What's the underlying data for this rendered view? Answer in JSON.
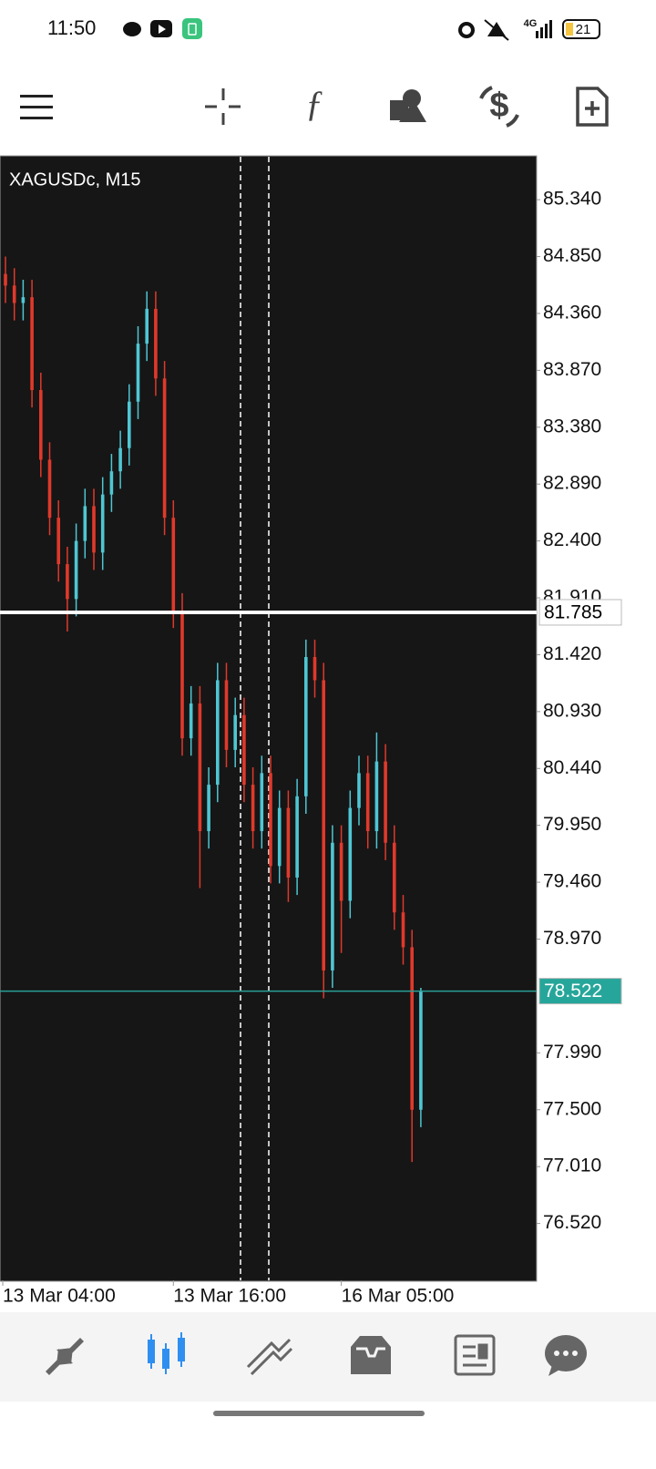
{
  "status_bar": {
    "time": "11:50",
    "network": "4G",
    "battery": "21"
  },
  "chart_data": {
    "type": "candlestick",
    "title": "XAGUSDc, M15",
    "categories": [
      "13 Mar 04:00",
      null,
      null,
      null,
      null,
      null,
      null,
      null,
      null,
      null,
      null,
      null,
      null,
      null,
      null,
      null,
      null,
      null,
      null,
      "13 Mar 16:00",
      null,
      null,
      null,
      null,
      null,
      null,
      null,
      null,
      null,
      null,
      null,
      null,
      null,
      null,
      null,
      null,
      null,
      null,
      "16 Mar 05:00",
      null,
      null,
      null,
      null,
      null,
      null,
      null,
      null,
      null
    ],
    "open": [
      84.7,
      84.6,
      84.45,
      84.5,
      83.7,
      83.1,
      82.6,
      82.2,
      81.9,
      82.4,
      82.7,
      82.3,
      82.8,
      83.0,
      83.2,
      83.6,
      84.1,
      84.4,
      83.8,
      82.6,
      81.8,
      80.7,
      81.0,
      79.9,
      80.3,
      81.2,
      80.6,
      80.9,
      80.3,
      79.9,
      80.4,
      79.6,
      80.1,
      79.5,
      80.2,
      81.4,
      81.2,
      78.7,
      79.8,
      79.3,
      80.1,
      80.4,
      79.9,
      80.5,
      79.8,
      79.2,
      78.9,
      77.5
    ],
    "high": [
      84.85,
      84.75,
      84.65,
      84.65,
      83.85,
      83.25,
      82.75,
      82.35,
      82.55,
      82.85,
      82.85,
      82.95,
      83.15,
      83.35,
      83.75,
      84.25,
      84.55,
      84.55,
      83.95,
      82.75,
      81.95,
      81.15,
      81.15,
      80.45,
      81.35,
      81.35,
      81.05,
      81.05,
      80.45,
      80.55,
      80.55,
      80.25,
      80.25,
      80.35,
      81.55,
      81.55,
      81.35,
      79.95,
      79.95,
      80.25,
      80.55,
      80.55,
      80.75,
      80.65,
      79.95,
      79.35,
      79.05,
      78.55
    ],
    "low": [
      84.45,
      84.3,
      84.3,
      83.55,
      82.95,
      82.45,
      82.05,
      81.62,
      81.75,
      82.25,
      82.15,
      82.15,
      82.65,
      82.85,
      83.05,
      83.45,
      83.95,
      83.65,
      82.45,
      81.65,
      80.55,
      80.55,
      79.41,
      79.75,
      80.15,
      80.45,
      80.45,
      80.15,
      79.75,
      79.75,
      79.45,
      79.45,
      79.29,
      79.35,
      80.05,
      81.05,
      78.46,
      78.55,
      78.85,
      79.15,
      79.95,
      79.75,
      79.75,
      79.65,
      79.05,
      78.75,
      77.05,
      77.35
    ],
    "close": [
      84.6,
      84.45,
      84.5,
      83.7,
      83.1,
      82.6,
      82.2,
      81.9,
      82.4,
      82.7,
      82.3,
      82.8,
      83.0,
      83.2,
      83.6,
      84.1,
      84.4,
      83.8,
      82.6,
      81.8,
      80.7,
      81.0,
      79.9,
      80.3,
      81.2,
      80.6,
      80.9,
      80.3,
      79.9,
      80.4,
      79.6,
      80.1,
      79.5,
      80.2,
      81.4,
      81.2,
      78.7,
      79.8,
      79.3,
      80.1,
      80.4,
      79.9,
      80.5,
      79.8,
      79.2,
      78.9,
      77.5,
      78.52
    ],
    "up_color": "#4fc6d3",
    "down_color": "#e0392b",
    "ylim": [
      76.03,
      85.71
    ],
    "yticks": [
      {
        "value": 85.34,
        "label": "85.340"
      },
      {
        "value": 84.85,
        "label": "84.850"
      },
      {
        "value": 84.36,
        "label": "84.360"
      },
      {
        "value": 83.87,
        "label": "83.870"
      },
      {
        "value": 83.38,
        "label": "83.380"
      },
      {
        "value": 82.89,
        "label": "82.890"
      },
      {
        "value": 82.4,
        "label": "82.400"
      },
      {
        "value": 81.91,
        "label": "81.910"
      },
      {
        "value": 81.42,
        "label": "81.420"
      },
      {
        "value": 80.93,
        "label": "80.930"
      },
      {
        "value": 80.44,
        "label": "80.440"
      },
      {
        "value": 79.95,
        "label": "79.950"
      },
      {
        "value": 79.46,
        "label": "79.460"
      },
      {
        "value": 78.97,
        "label": "78.970"
      },
      {
        "value": 77.99,
        "label": "77.990"
      },
      {
        "value": 77.5,
        "label": "77.500"
      },
      {
        "value": 77.01,
        "label": "77.010"
      },
      {
        "value": 76.52,
        "label": "76.520"
      }
    ],
    "price_lines": [
      {
        "value": 81.785,
        "color": "#ffffff",
        "label_bg": "#ffffff",
        "label_color": "#000000"
      },
      {
        "value": 78.522,
        "color": "#2aa198",
        "label_bg": "#26a69a",
        "label_color": "#ffffff"
      }
    ]
  }
}
